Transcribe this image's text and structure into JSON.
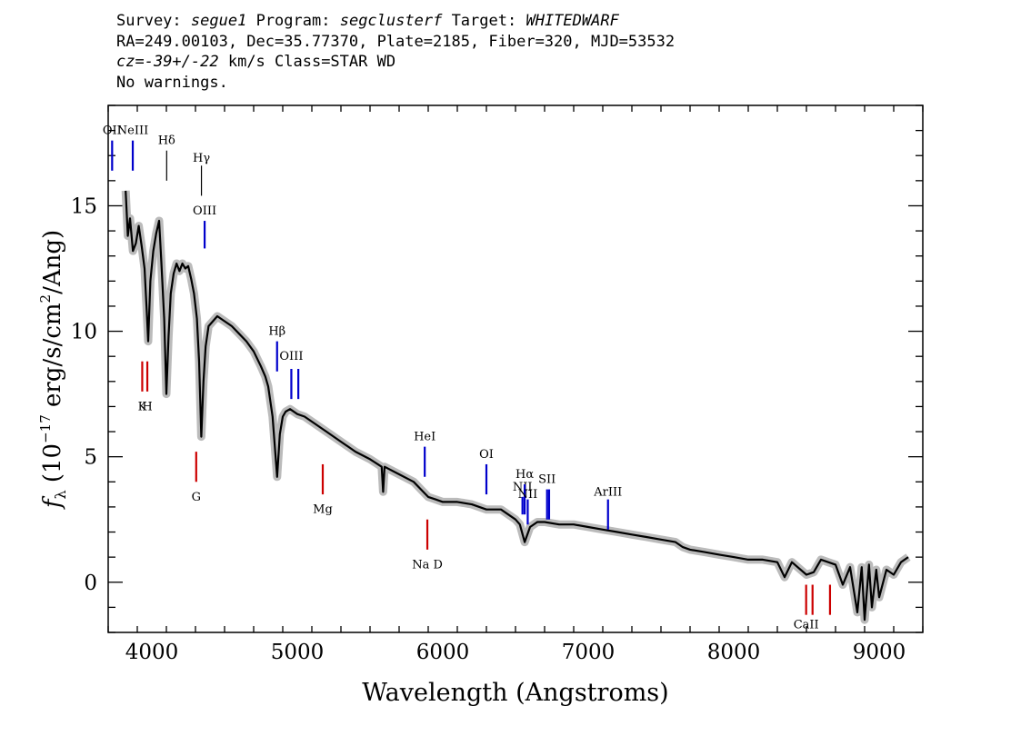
{
  "header": {
    "survey_label": "Survey:",
    "survey": "segue1",
    "program_label": "Program:",
    "program": "segclusterf",
    "target_label": "Target:",
    "target": "WHITEDWARF",
    "line2": "RA=249.00103, Dec=35.77370, Plate=2185, Fiber=320, MJD=53532",
    "cz_prefix": "cz=",
    "cz_value": "-39+/-22",
    "cz_suffix": " km/s Class=STAR WD",
    "line4": "No warnings."
  },
  "colors": {
    "spectrum": "#000000",
    "error_band": "#bbbbbb",
    "emission_lines": "#0000cc",
    "absorption_lines": "#cc0000",
    "balmer_lines": "#000000"
  },
  "chart_data": {
    "type": "line",
    "xlabel": "Wavelength (Angstroms)",
    "ylabel": "f_λ (10^-17 erg/s/cm^2/Ang)",
    "xlim": [
      3700,
      9300
    ],
    "ylim": [
      -2,
      19
    ],
    "xticks": [
      4000,
      5000,
      6000,
      7000,
      8000,
      9000
    ],
    "yticks": [
      0,
      5,
      10,
      15
    ],
    "grid": false,
    "series": [
      {
        "points": [
          [
            3820,
            15.6
          ],
          [
            3835,
            13.8
          ],
          [
            3850,
            14.5
          ],
          [
            3870,
            13.2
          ],
          [
            3890,
            13.5
          ],
          [
            3910,
            14.2
          ],
          [
            3930,
            13.4
          ],
          [
            3950,
            12.5
          ],
          [
            3965,
            10.8
          ],
          [
            3975,
            9.6
          ],
          [
            3990,
            12.0
          ],
          [
            4010,
            13.2
          ],
          [
            4030,
            13.9
          ],
          [
            4050,
            14.4
          ],
          [
            4065,
            12.8
          ],
          [
            4085,
            10.5
          ],
          [
            4100,
            7.5
          ],
          [
            4115,
            9.8
          ],
          [
            4130,
            11.5
          ],
          [
            4150,
            12.3
          ],
          [
            4170,
            12.7
          ],
          [
            4190,
            12.4
          ],
          [
            4210,
            12.7
          ],
          [
            4230,
            12.5
          ],
          [
            4250,
            12.6
          ],
          [
            4270,
            12.1
          ],
          [
            4290,
            11.5
          ],
          [
            4310,
            10.5
          ],
          [
            4325,
            8.8
          ],
          [
            4340,
            5.8
          ],
          [
            4355,
            8.0
          ],
          [
            4370,
            9.4
          ],
          [
            4390,
            10.2
          ],
          [
            4420,
            10.4
          ],
          [
            4450,
            10.6
          ],
          [
            4500,
            10.4
          ],
          [
            4550,
            10.2
          ],
          [
            4600,
            9.9
          ],
          [
            4650,
            9.6
          ],
          [
            4700,
            9.2
          ],
          [
            4750,
            8.6
          ],
          [
            4780,
            8.2
          ],
          [
            4800,
            7.8
          ],
          [
            4830,
            6.6
          ],
          [
            4861,
            4.2
          ],
          [
            4880,
            5.9
          ],
          [
            4900,
            6.6
          ],
          [
            4920,
            6.8
          ],
          [
            4950,
            6.9
          ],
          [
            5000,
            6.7
          ],
          [
            5050,
            6.6
          ],
          [
            5100,
            6.4
          ],
          [
            5150,
            6.2
          ],
          [
            5200,
            6.0
          ],
          [
            5300,
            5.6
          ],
          [
            5400,
            5.2
          ],
          [
            5500,
            4.9
          ],
          [
            5580,
            4.6
          ],
          [
            5590,
            3.6
          ],
          [
            5600,
            4.6
          ],
          [
            5700,
            4.3
          ],
          [
            5800,
            4.0
          ],
          [
            5850,
            3.7
          ],
          [
            5900,
            3.4
          ],
          [
            5950,
            3.3
          ],
          [
            6000,
            3.2
          ],
          [
            6100,
            3.2
          ],
          [
            6200,
            3.1
          ],
          [
            6300,
            2.9
          ],
          [
            6400,
            2.9
          ],
          [
            6450,
            2.7
          ],
          [
            6500,
            2.5
          ],
          [
            6530,
            2.3
          ],
          [
            6563,
            1.6
          ],
          [
            6600,
            2.2
          ],
          [
            6650,
            2.4
          ],
          [
            6700,
            2.4
          ],
          [
            6800,
            2.3
          ],
          [
            6900,
            2.3
          ],
          [
            7000,
            2.2
          ],
          [
            7100,
            2.1
          ],
          [
            7200,
            2.0
          ],
          [
            7300,
            1.9
          ],
          [
            7400,
            1.8
          ],
          [
            7500,
            1.7
          ],
          [
            7600,
            1.6
          ],
          [
            7650,
            1.4
          ],
          [
            7700,
            1.3
          ],
          [
            7800,
            1.2
          ],
          [
            7900,
            1.1
          ],
          [
            8000,
            1.0
          ],
          [
            8100,
            0.9
          ],
          [
            8200,
            0.9
          ],
          [
            8300,
            0.8
          ],
          [
            8350,
            0.2
          ],
          [
            8400,
            0.8
          ],
          [
            8500,
            0.3
          ],
          [
            8550,
            0.4
          ],
          [
            8600,
            0.9
          ],
          [
            8650,
            0.8
          ],
          [
            8700,
            0.7
          ],
          [
            8750,
            -0.1
          ],
          [
            8800,
            0.6
          ],
          [
            8850,
            -1.2
          ],
          [
            8880,
            0.6
          ],
          [
            8900,
            -1.5
          ],
          [
            8930,
            0.7
          ],
          [
            8950,
            -1.0
          ],
          [
            8980,
            0.5
          ],
          [
            9000,
            -0.6
          ],
          [
            9050,
            0.5
          ],
          [
            9100,
            0.3
          ],
          [
            9150,
            0.8
          ],
          [
            9200,
            1.0
          ]
        ]
      }
    ],
    "lines": [
      {
        "label": "OII",
        "wavelength": 3727,
        "type": "emission",
        "y1": 16.4,
        "y2": 17.6,
        "label_y": 18.0
      },
      {
        "label": "NeIII",
        "wavelength": 3869,
        "type": "emission",
        "y1": 16.4,
        "y2": 17.6,
        "label_y": 18.0
      },
      {
        "label": "Hδ",
        "wavelength": 4102,
        "type": "balmer",
        "y1": 16.0,
        "y2": 17.2,
        "label_y": 17.6
      },
      {
        "label": "Hγ",
        "wavelength": 4341,
        "type": "balmer",
        "y1": 15.4,
        "y2": 16.6,
        "label_y": 16.9
      },
      {
        "label": "OIII",
        "wavelength": 4363,
        "type": "emission",
        "y1": 13.3,
        "y2": 14.4,
        "label_y": 14.8
      },
      {
        "label": "Hβ",
        "wavelength": 4861,
        "type": "emission",
        "y1": 8.4,
        "y2": 9.6,
        "label_y": 10.0
      },
      {
        "label": "OIII",
        "wavelength": 4959,
        "type": "emission",
        "y1": 7.3,
        "y2": 8.5,
        "label_y": 9.0
      },
      {
        "label": "",
        "wavelength": 5007,
        "type": "emission",
        "y1": 7.3,
        "y2": 8.5,
        "label_y": 9.0
      },
      {
        "label": "HeI",
        "wavelength": 5876,
        "type": "emission",
        "y1": 4.2,
        "y2": 5.4,
        "label_y": 5.8
      },
      {
        "label": "OI",
        "wavelength": 6300,
        "type": "emission",
        "y1": 3.5,
        "y2": 4.7,
        "label_y": 5.1
      },
      {
        "label": "NII",
        "wavelength": 6548,
        "type": "emission",
        "y1": 2.7,
        "y2": 3.4,
        "label_y": 3.8
      },
      {
        "label": "Hα",
        "wavelength": 6563,
        "type": "emission",
        "y1": 2.7,
        "y2": 3.9,
        "label_y": 4.3
      },
      {
        "label": "NII",
        "wavelength": 6584,
        "type": "emission",
        "y1": 2.3,
        "y2": 3.3,
        "label_y": 3.5
      },
      {
        "label": "SII",
        "wavelength": 6717,
        "type": "emission",
        "y1": 2.5,
        "y2": 3.7,
        "label_y": 4.1
      },
      {
        "label": "",
        "wavelength": 6731,
        "type": "emission",
        "y1": 2.5,
        "y2": 3.7,
        "label_y": 4.1
      },
      {
        "label": "ArIII",
        "wavelength": 7136,
        "type": "emission",
        "y1": 2.1,
        "y2": 3.3,
        "label_y": 3.6
      },
      {
        "label": "K",
        "wavelength": 3934,
        "type": "absorption",
        "y1": 7.6,
        "y2": 8.8,
        "label_y": 7.0
      },
      {
        "label": "H",
        "wavelength": 3969,
        "type": "absorption",
        "y1": 7.6,
        "y2": 8.8,
        "label_y": 7.0
      },
      {
        "label": "G",
        "wavelength": 4305,
        "type": "absorption",
        "y1": 4.0,
        "y2": 5.2,
        "label_y": 3.4
      },
      {
        "label": "Mg",
        "wavelength": 5175,
        "type": "absorption",
        "y1": 3.5,
        "y2": 4.7,
        "label_y": 2.9
      },
      {
        "label": "Na D",
        "wavelength": 5894,
        "type": "absorption",
        "y1": 1.3,
        "y2": 2.5,
        "label_y": 0.7
      },
      {
        "label": "CaII",
        "wavelength": 8498,
        "type": "absorption",
        "y1": -1.3,
        "y2": -0.1,
        "label_y": -1.7
      },
      {
        "label": "",
        "wavelength": 8542,
        "type": "absorption",
        "y1": -1.3,
        "y2": -0.1,
        "label_y": -1.7
      },
      {
        "label": "",
        "wavelength": 8662,
        "type": "absorption",
        "y1": -1.3,
        "y2": -0.1,
        "label_y": -1.7
      }
    ]
  }
}
